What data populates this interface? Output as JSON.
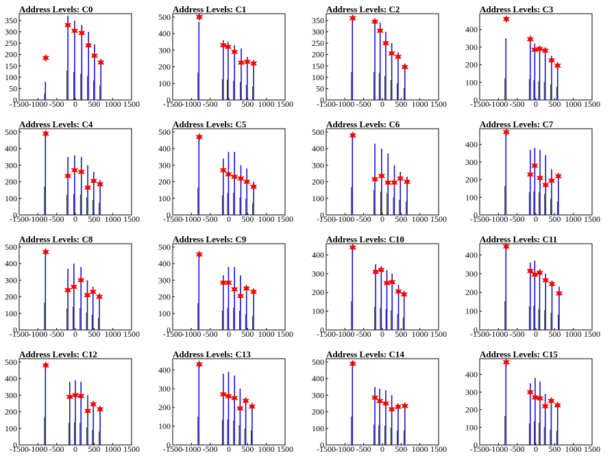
{
  "colors": {
    "data_bar": "#1010dd",
    "secondary_bar": "#000000",
    "peak_marker": "#ff0000",
    "frame": "#000000"
  },
  "chart_data": [
    {
      "type": "bar",
      "title": "Address Levels: C0",
      "xlim": [
        -1500,
        1500
      ],
      "ylim": [
        0,
        380
      ],
      "xticks": [
        "-1500",
        "-1000",
        "-500",
        "0",
        "500",
        "1000",
        "1500"
      ],
      "yticks": [
        0,
        50,
        100,
        150,
        200,
        250,
        300,
        350
      ],
      "bars": [
        [
          -800,
          80
        ],
        [
          -200,
          370
        ],
        [
          -20,
          350
        ],
        [
          170,
          330
        ],
        [
          350,
          300
        ],
        [
          510,
          245
        ],
        [
          680,
          180
        ]
      ],
      "peaks": [
        [
          -790,
          185
        ],
        [
          -200,
          330
        ],
        [
          -20,
          305
        ],
        [
          170,
          295
        ],
        [
          350,
          240
        ],
        [
          510,
          195
        ],
        [
          680,
          165
        ]
      ]
    },
    {
      "type": "bar",
      "title": "Address Levels: C1",
      "xlim": [
        -1500,
        1500
      ],
      "ylim": [
        0,
        520
      ],
      "xticks": [
        "-1500",
        "-1000",
        "-500",
        "0",
        "500",
        "1000",
        "1500"
      ],
      "yticks": [
        0,
        100,
        200,
        300,
        400,
        500
      ],
      "bars": [
        [
          -800,
          470
        ],
        [
          -150,
          360
        ],
        [
          -20,
          350
        ],
        [
          150,
          330
        ],
        [
          330,
          310
        ],
        [
          490,
          260
        ],
        [
          660,
          230
        ]
      ],
      "peaks": [
        [
          -790,
          500
        ],
        [
          -150,
          330
        ],
        [
          -20,
          320
        ],
        [
          150,
          290
        ],
        [
          330,
          225
        ],
        [
          490,
          230
        ],
        [
          660,
          220
        ]
      ]
    },
    {
      "type": "bar",
      "title": "Address Levels: C2",
      "xlim": [
        -1500,
        1500
      ],
      "ylim": [
        0,
        380
      ],
      "xticks": [
        "-1500",
        "-1000",
        "-500",
        "0",
        "500",
        "1000",
        "1500"
      ],
      "yticks": [
        0,
        50,
        100,
        150,
        200,
        250,
        300,
        350
      ],
      "bars": [
        [
          -800,
          350
        ],
        [
          -200,
          350
        ],
        [
          -60,
          340
        ],
        [
          90,
          300
        ],
        [
          250,
          250
        ],
        [
          420,
          210
        ],
        [
          600,
          150
        ]
      ],
      "peaks": [
        [
          -790,
          360
        ],
        [
          -200,
          345
        ],
        [
          -60,
          305
        ],
        [
          90,
          250
        ],
        [
          250,
          205
        ],
        [
          420,
          190
        ],
        [
          600,
          145
        ]
      ]
    },
    {
      "type": "bar",
      "title": "Address Levels: C3",
      "xlim": [
        -1500,
        1500
      ],
      "ylim": [
        0,
        490
      ],
      "xticks": [
        "-1500",
        "-1000",
        "-500",
        "0",
        "500",
        "1000",
        "1500"
      ],
      "yticks": [
        0,
        100,
        200,
        300,
        400
      ],
      "bars": [
        [
          -800,
          350
        ],
        [
          -150,
          340
        ],
        [
          -30,
          320
        ],
        [
          100,
          300
        ],
        [
          250,
          290
        ],
        [
          420,
          250
        ],
        [
          580,
          210
        ]
      ],
      "peaks": [
        [
          -790,
          460
        ],
        [
          -150,
          345
        ],
        [
          -30,
          285
        ],
        [
          100,
          290
        ],
        [
          250,
          280
        ],
        [
          420,
          225
        ],
        [
          580,
          195
        ]
      ]
    },
    {
      "type": "bar",
      "title": "Address Levels: C4",
      "xlim": [
        -1500,
        1500
      ],
      "ylim": [
        0,
        520
      ],
      "xticks": [
        "-1500",
        "-1000",
        "-500",
        "0",
        "500",
        "1000",
        "1500"
      ],
      "yticks": [
        0,
        100,
        200,
        300,
        400,
        500
      ],
      "bars": [
        [
          -800,
          490
        ],
        [
          -200,
          350
        ],
        [
          -20,
          360
        ],
        [
          160,
          350
        ],
        [
          330,
          300
        ],
        [
          490,
          260
        ],
        [
          660,
          210
        ]
      ],
      "peaks": [
        [
          -790,
          490
        ],
        [
          -200,
          235
        ],
        [
          -20,
          270
        ],
        [
          160,
          260
        ],
        [
          330,
          165
        ],
        [
          490,
          205
        ],
        [
          660,
          185
        ]
      ]
    },
    {
      "type": "bar",
      "title": "Address Levels: C5",
      "xlim": [
        -1500,
        1500
      ],
      "ylim": [
        0,
        520
      ],
      "xticks": [
        "-1500",
        "-1000",
        "-500",
        "0",
        "500",
        "1000",
        "1500"
      ],
      "yticks": [
        0,
        100,
        200,
        300,
        400,
        500
      ],
      "bars": [
        [
          -800,
          470
        ],
        [
          -150,
          340
        ],
        [
          -10,
          380
        ],
        [
          150,
          380
        ],
        [
          320,
          300
        ],
        [
          480,
          280
        ],
        [
          660,
          200
        ]
      ],
      "peaks": [
        [
          -790,
          470
        ],
        [
          -150,
          270
        ],
        [
          -10,
          245
        ],
        [
          150,
          230
        ],
        [
          320,
          220
        ],
        [
          480,
          200
        ],
        [
          660,
          170
        ]
      ]
    },
    {
      "type": "bar",
      "title": "Address Levels: C6",
      "xlim": [
        -1500,
        1500
      ],
      "ylim": [
        0,
        520
      ],
      "xticks": [
        "-1500",
        "-1000",
        "-500",
        "0",
        "500",
        "1000",
        "1500"
      ],
      "yticks": [
        0,
        100,
        200,
        300,
        400,
        500
      ],
      "bars": [
        [
          -800,
          480
        ],
        [
          -200,
          430
        ],
        [
          -20,
          400
        ],
        [
          150,
          370
        ],
        [
          320,
          300
        ],
        [
          480,
          260
        ],
        [
          660,
          230
        ]
      ],
      "peaks": [
        [
          -790,
          480
        ],
        [
          -200,
          215
        ],
        [
          -20,
          235
        ],
        [
          150,
          195
        ],
        [
          320,
          195
        ],
        [
          480,
          220
        ],
        [
          660,
          200
        ]
      ]
    },
    {
      "type": "bar",
      "title": "Address Levels: C7",
      "xlim": [
        -1500,
        1500
      ],
      "ylim": [
        0,
        490
      ],
      "xticks": [
        "-1500",
        "-1000",
        "-500",
        "0",
        "500",
        "1000",
        "1500"
      ],
      "yticks": [
        0,
        100,
        200,
        300,
        400
      ],
      "bars": [
        [
          -800,
          470
        ],
        [
          -150,
          370
        ],
        [
          -30,
          380
        ],
        [
          110,
          370
        ],
        [
          260,
          340
        ],
        [
          420,
          260
        ],
        [
          600,
          220
        ]
      ],
      "peaks": [
        [
          -790,
          470
        ],
        [
          -150,
          230
        ],
        [
          -30,
          280
        ],
        [
          110,
          210
        ],
        [
          260,
          170
        ],
        [
          420,
          195
        ],
        [
          600,
          220
        ]
      ]
    },
    {
      "type": "bar",
      "title": "Address Levels: C8",
      "xlim": [
        -1500,
        1500
      ],
      "ylim": [
        0,
        520
      ],
      "xticks": [
        "-1500",
        "-1000",
        "-500",
        "0",
        "500",
        "1000",
        "1500"
      ],
      "yticks": [
        0,
        100,
        200,
        300,
        400,
        500
      ],
      "bars": [
        [
          -800,
          470
        ],
        [
          -200,
          370
        ],
        [
          -40,
          400
        ],
        [
          150,
          380
        ],
        [
          320,
          300
        ],
        [
          470,
          260
        ],
        [
          640,
          210
        ]
      ],
      "peaks": [
        [
          -790,
          470
        ],
        [
          -200,
          240
        ],
        [
          -40,
          260
        ],
        [
          150,
          300
        ],
        [
          320,
          210
        ],
        [
          470,
          230
        ],
        [
          640,
          200
        ]
      ]
    },
    {
      "type": "bar",
      "title": "Address Levels: C9",
      "xlim": [
        -1500,
        1500
      ],
      "ylim": [
        0,
        520
      ],
      "xticks": [
        "-1500",
        "-1000",
        "-500",
        "0",
        "500",
        "1000",
        "1500"
      ],
      "yticks": [
        0,
        100,
        200,
        300,
        400,
        500
      ],
      "bars": [
        [
          -800,
          460
        ],
        [
          -150,
          330
        ],
        [
          -10,
          380
        ],
        [
          150,
          380
        ],
        [
          310,
          330
        ],
        [
          470,
          270
        ],
        [
          660,
          240
        ]
      ],
      "peaks": [
        [
          -790,
          455
        ],
        [
          -150,
          285
        ],
        [
          -10,
          285
        ],
        [
          150,
          245
        ],
        [
          310,
          205
        ],
        [
          470,
          250
        ],
        [
          660,
          230
        ]
      ]
    },
    {
      "type": "bar",
      "title": "Address Levels: C10",
      "xlim": [
        -1500,
        1500
      ],
      "ylim": [
        0,
        460
      ],
      "xticks": [
        "-1500",
        "-1000",
        "-500",
        "0",
        "500",
        "1000",
        "1500"
      ],
      "yticks": [
        0,
        100,
        200,
        300,
        400
      ],
      "bars": [
        [
          -800,
          440
        ],
        [
          -180,
          350
        ],
        [
          -30,
          340
        ],
        [
          120,
          320
        ],
        [
          260,
          300
        ],
        [
          430,
          240
        ],
        [
          580,
          190
        ]
      ],
      "peaks": [
        [
          -790,
          440
        ],
        [
          -180,
          310
        ],
        [
          -30,
          320
        ],
        [
          120,
          250
        ],
        [
          260,
          255
        ],
        [
          430,
          205
        ],
        [
          580,
          190
        ]
      ]
    },
    {
      "type": "bar",
      "title": "Address Levels: C11",
      "xlim": [
        -1500,
        1500
      ],
      "ylim": [
        0,
        460
      ],
      "xticks": [
        "-1500",
        "-1000",
        "-500",
        "0",
        "500",
        "1000",
        "1500"
      ],
      "yticks": [
        0,
        100,
        200,
        300,
        400
      ],
      "bars": [
        [
          -800,
          440
        ],
        [
          -150,
          360
        ],
        [
          -30,
          370
        ],
        [
          100,
          320
        ],
        [
          260,
          300
        ],
        [
          430,
          260
        ],
        [
          620,
          230
        ]
      ],
      "peaks": [
        [
          -790,
          445
        ],
        [
          -150,
          315
        ],
        [
          -30,
          295
        ],
        [
          100,
          305
        ],
        [
          260,
          265
        ],
        [
          430,
          245
        ],
        [
          620,
          195
        ]
      ]
    },
    {
      "type": "bar",
      "title": "Address Levels: C12",
      "xlim": [
        -1500,
        1500
      ],
      "ylim": [
        0,
        520
      ],
      "xticks": [
        "-1500",
        "-1000",
        "-500",
        "0",
        "500",
        "1000",
        "1500"
      ],
      "yticks": [
        0,
        100,
        200,
        300,
        400,
        500
      ],
      "bars": [
        [
          -800,
          480
        ],
        [
          -150,
          380
        ],
        [
          0,
          390
        ],
        [
          150,
          380
        ],
        [
          330,
          300
        ],
        [
          480,
          260
        ],
        [
          660,
          230
        ]
      ],
      "peaks": [
        [
          -790,
          480
        ],
        [
          -150,
          290
        ],
        [
          0,
          300
        ],
        [
          150,
          295
        ],
        [
          330,
          205
        ],
        [
          480,
          245
        ],
        [
          660,
          215
        ]
      ]
    },
    {
      "type": "bar",
      "title": "Address Levels: C13",
      "xlim": [
        -1500,
        1500
      ],
      "ylim": [
        0,
        460
      ],
      "xticks": [
        "-1500",
        "-1000",
        "-500",
        "0",
        "500",
        "1000",
        "1500"
      ],
      "yticks": [
        0,
        100,
        200,
        300,
        400
      ],
      "bars": [
        [
          -800,
          430
        ],
        [
          -150,
          380
        ],
        [
          -10,
          390
        ],
        [
          150,
          370
        ],
        [
          300,
          300
        ],
        [
          450,
          250
        ],
        [
          620,
          220
        ]
      ],
      "peaks": [
        [
          -790,
          430
        ],
        [
          -150,
          270
        ],
        [
          -10,
          260
        ],
        [
          150,
          250
        ],
        [
          300,
          195
        ],
        [
          450,
          235
        ],
        [
          620,
          205
        ]
      ]
    },
    {
      "type": "bar",
      "title": "Address Levels: C14",
      "xlim": [
        -1500,
        1500
      ],
      "ylim": [
        0,
        520
      ],
      "xticks": [
        "-1500",
        "-1000",
        "-500",
        "0",
        "500",
        "1000",
        "1500"
      ],
      "yticks": [
        0,
        100,
        200,
        300,
        400,
        500
      ],
      "bars": [
        [
          -800,
          490
        ],
        [
          -200,
          350
        ],
        [
          -70,
          340
        ],
        [
          90,
          330
        ],
        [
          250,
          300
        ],
        [
          420,
          250
        ],
        [
          600,
          250
        ]
      ],
      "peaks": [
        [
          -790,
          490
        ],
        [
          -200,
          285
        ],
        [
          -70,
          265
        ],
        [
          90,
          250
        ],
        [
          250,
          215
        ],
        [
          420,
          230
        ],
        [
          600,
          235
        ]
      ]
    },
    {
      "type": "bar",
      "title": "Address Levels: C15",
      "xlim": [
        -1500,
        1500
      ],
      "ylim": [
        0,
        490
      ],
      "xticks": [
        "-1500",
        "-1000",
        "-500",
        "0",
        "500",
        "1000",
        "1500"
      ],
      "yticks": [
        0,
        100,
        200,
        300,
        400
      ],
      "bars": [
        [
          -800,
          470
        ],
        [
          -150,
          350
        ],
        [
          -20,
          380
        ],
        [
          110,
          360
        ],
        [
          250,
          290
        ],
        [
          410,
          250
        ],
        [
          580,
          230
        ]
      ],
      "peaks": [
        [
          -790,
          470
        ],
        [
          -150,
          300
        ],
        [
          -20,
          270
        ],
        [
          110,
          265
        ],
        [
          250,
          220
        ],
        [
          410,
          250
        ],
        [
          580,
          225
        ]
      ]
    }
  ]
}
